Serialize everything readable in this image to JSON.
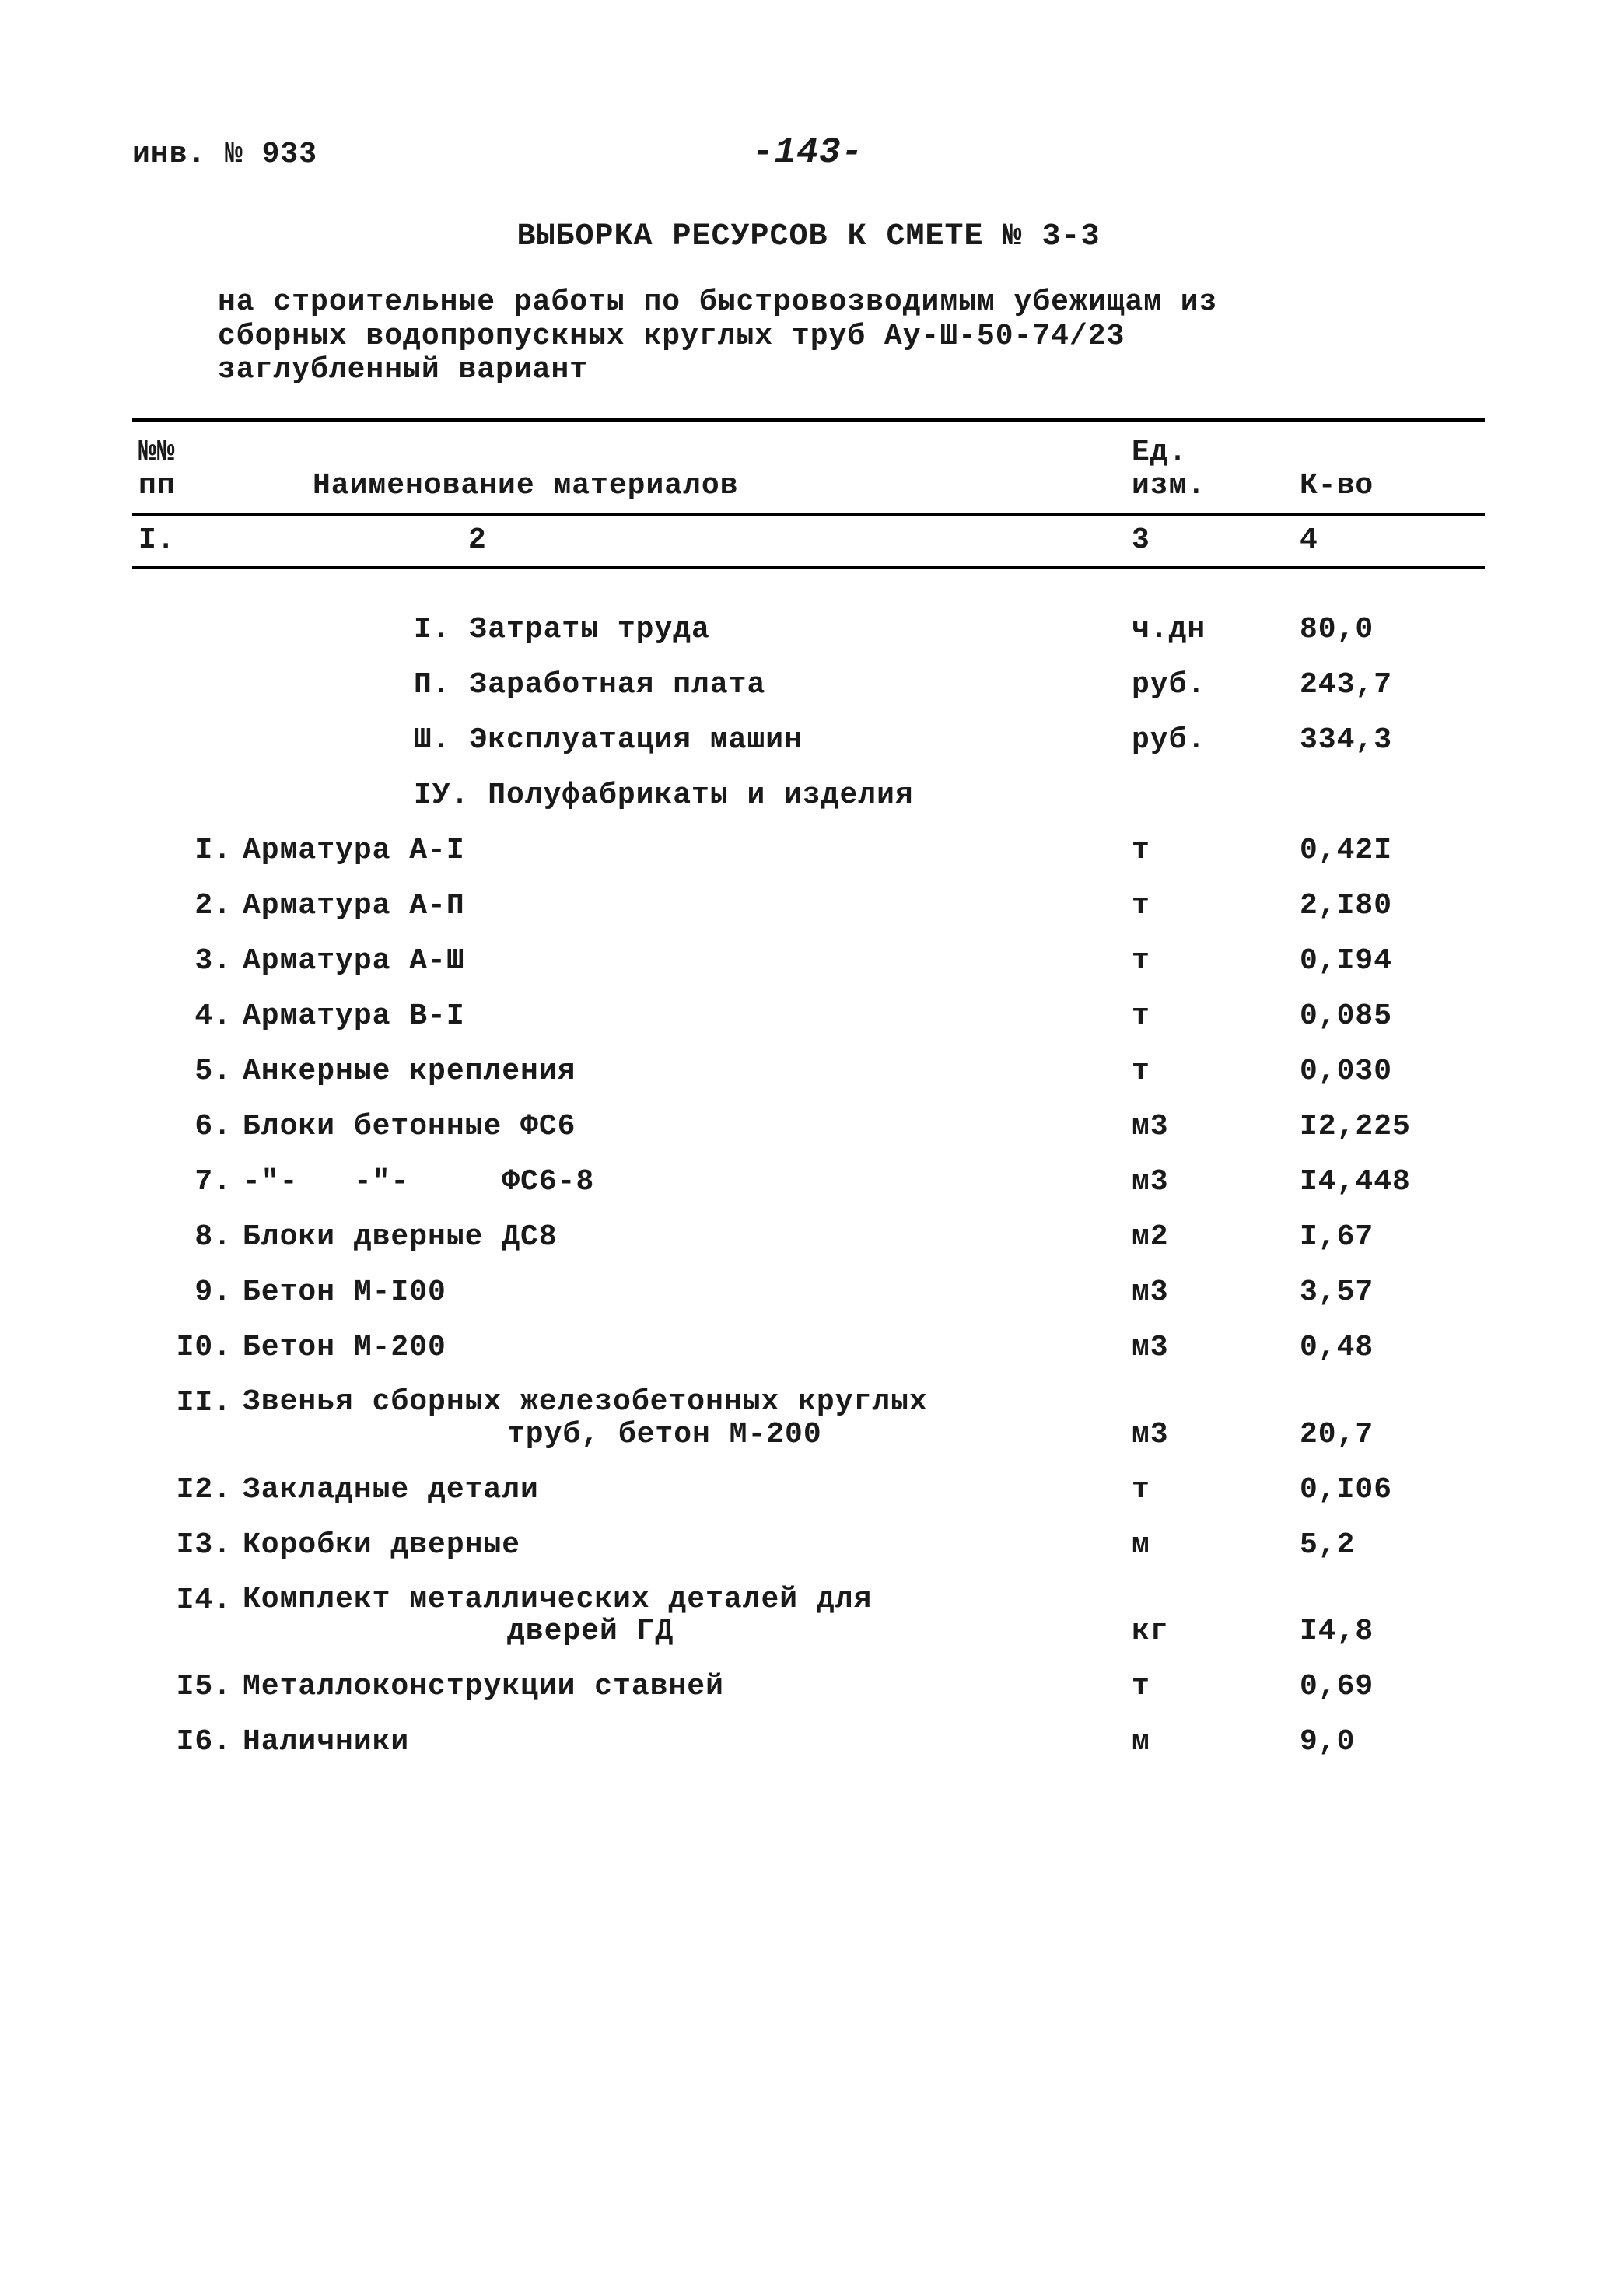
{
  "meta": {
    "inv_label": "инв. № 933",
    "page_number": "-143-"
  },
  "title": "ВЫБОРКА РЕСУРСОВ К СМЕТЕ № 3-3",
  "subtitle_line1": "на строительные работы по быстровозводимым убежищам из",
  "subtitle_line2": "сборных водопропускных круглых труб Ау-Ш-50-74/23",
  "subtitle_line3": "заглубленный вариант",
  "header": {
    "c1a": "№№",
    "c1b": "пп",
    "c2": "Наименование материалов",
    "c3a": "Ед.",
    "c3b": "изм.",
    "c4": "К-во"
  },
  "colnums": {
    "c1": "I.",
    "c2": "2",
    "c3": "3",
    "c4": "4"
  },
  "sections": [
    {
      "label": "I. Затраты труда",
      "unit": "ч.дн",
      "qty": "80,0"
    },
    {
      "label": "П. Заработная плата",
      "unit": "руб.",
      "qty": "243,7"
    },
    {
      "label": "Ш. Эксплуатация машин",
      "unit": "руб.",
      "qty": "334,3"
    },
    {
      "label": "IУ. Полуфабрикаты и изделия",
      "unit": "",
      "qty": ""
    }
  ],
  "rows": [
    {
      "n": "I.",
      "name": "Арматура А-I",
      "unit": "т",
      "qty": "0,42I"
    },
    {
      "n": "2.",
      "name": "Арматура А-П",
      "unit": "т",
      "qty": "2,I80"
    },
    {
      "n": "3.",
      "name": "Арматура А-Ш",
      "unit": "т",
      "qty": "0,I94"
    },
    {
      "n": "4.",
      "name": "Арматура В-I",
      "unit": "т",
      "qty": "0,085"
    },
    {
      "n": "5.",
      "name": "Анкерные крепления",
      "unit": "т",
      "qty": "0,030"
    },
    {
      "n": "6.",
      "name": "Блоки бетонные ФС6",
      "unit": "м3",
      "qty": "I2,225"
    },
    {
      "n": "7.",
      "name": "-\"-   -\"-     ФС6-8",
      "unit": "м3",
      "qty": "I4,448"
    },
    {
      "n": "8.",
      "name": "Блоки дверные ДС8",
      "unit": "м2",
      "qty": "I,67"
    },
    {
      "n": "9.",
      "name": "Бетон М-I00",
      "unit": "м3",
      "qty": "3,57"
    },
    {
      "n": "I0.",
      "name": "Бетон М-200",
      "unit": "м3",
      "qty": "0,48"
    },
    {
      "n": "II.",
      "name": "Звенья сборных железобетонных круглых",
      "name2": "труб, бетон М-200",
      "unit": "м3",
      "qty": "20,7"
    },
    {
      "n": "I2.",
      "name": "Закладные детали",
      "unit": "т",
      "qty": "0,I06"
    },
    {
      "n": "I3.",
      "name": "Коробки дверные",
      "unit": "м",
      "qty": "5,2"
    },
    {
      "n": "I4.",
      "name": "Комплект металлических деталей для",
      "name2": "дверей ГД",
      "unit": "кг",
      "qty": "I4,8"
    },
    {
      "n": "I5.",
      "name": "Металлоконструкции ставней",
      "unit": "т",
      "qty": "0,69"
    },
    {
      "n": "I6.",
      "name": "Наличники",
      "unit": "м",
      "qty": "9,0"
    }
  ]
}
